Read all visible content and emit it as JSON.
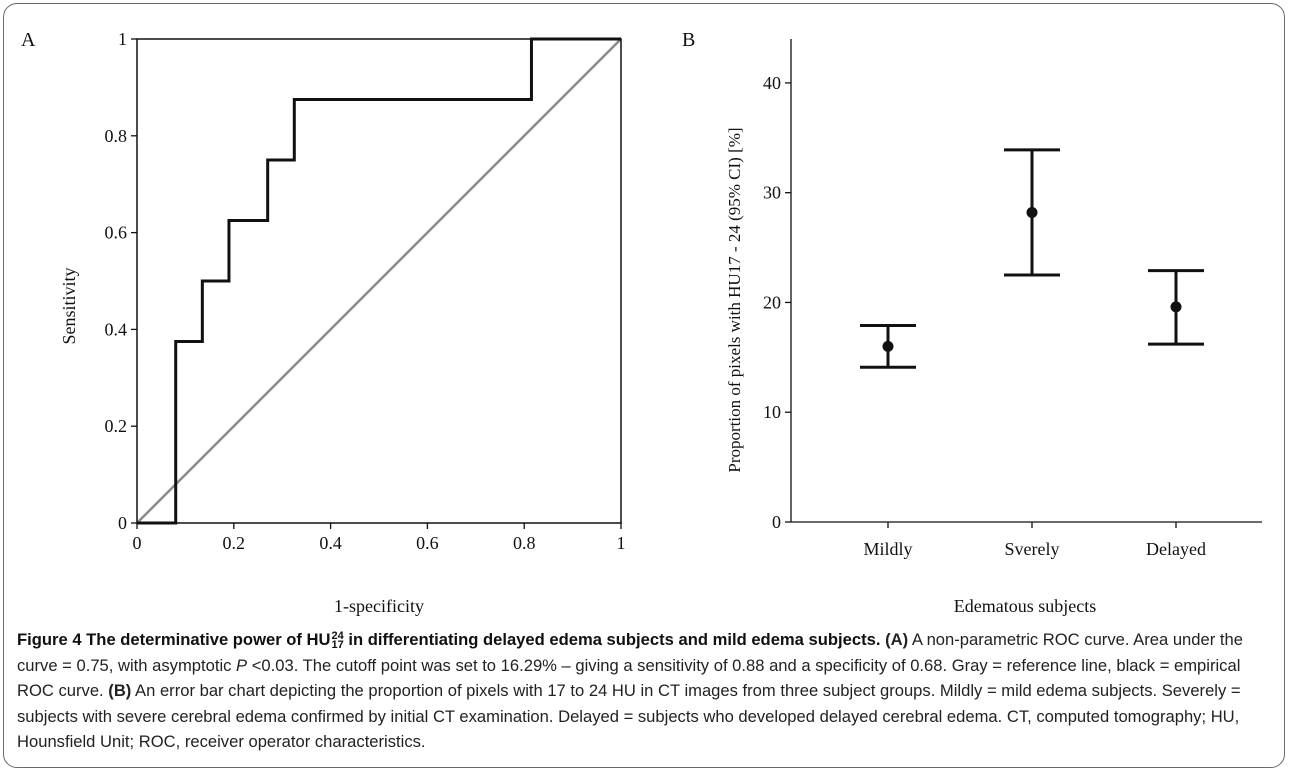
{
  "chart_data": [
    {
      "panel": "A",
      "type": "line",
      "xlabel": "1-specificity",
      "ylabel": "Sensitivity",
      "xlim": [
        0,
        1
      ],
      "ylim": [
        0,
        1
      ],
      "x_ticks": [
        "0",
        "0.2",
        "0.4",
        "0.6",
        "0.8",
        "1"
      ],
      "y_ticks": [
        "0",
        "0.2",
        "0.4",
        "0.6",
        "0.8",
        "1"
      ],
      "grid": false,
      "series": [
        {
          "color": "#111111",
          "x": [
            0,
            0.08,
            0.08,
            0.135,
            0.135,
            0.19,
            0.19,
            0.27,
            0.27,
            0.325,
            0.325,
            0.815,
            0.815,
            1.0
          ],
          "y": [
            0,
            0,
            0.375,
            0.375,
            0.5,
            0.5,
            0.625,
            0.625,
            0.75,
            0.75,
            0.875,
            0.875,
            1.0,
            1.0
          ]
        },
        {
          "color": "#8a8a8a",
          "x": [
            0,
            1
          ],
          "y": [
            0,
            1
          ]
        }
      ]
    },
    {
      "panel": "B",
      "type": "scatter",
      "xlabel": "Edematous subjects",
      "ylabel": "Proportion of pixels with HU17 - 24 (95% CI) [%]",
      "categories": [
        "Mildly",
        "Sverely",
        "Delayed"
      ],
      "ylim": [
        0,
        44
      ],
      "y_ticks": [
        0,
        10,
        20,
        30,
        40
      ],
      "grid": false,
      "series": [
        {
          "values": [
            16.0,
            28.2,
            19.6
          ],
          "ci_low": [
            14.1,
            22.5,
            16.2
          ],
          "ci_high": [
            17.9,
            33.9,
            22.9
          ]
        }
      ]
    }
  ],
  "caption": {
    "fig_label": "Figure 4",
    "title_pre": "The determinative power of HU",
    "hu_sup": "24",
    "hu_sub": "17",
    "title_post": " in differentiating delayed edema subjects and mild edema subjects.",
    "part_a_tag": "(A)",
    "part_a_text1": " A non-parametric ROC curve. Area under the curve = 0.75, with asymptotic ",
    "p_symbol": "P",
    "part_a_text2": " <0.03. The cutoff point was set to 16.29% – giving a sensitivity of 0.88 and a specificity of 0.68. Gray = reference line, black = empirical ROC curve. ",
    "part_b_tag": "(B)",
    "part_b_text": " An error bar chart depicting the proportion of pixels with 17 to 24 HU in CT images from three subject groups. Mildly = mild edema subjects. Severely = subjects with severe cerebral edema confirmed by initial CT examination. Delayed = subjects who developed delayed cerebral edema. CT, computed tomography; HU, Hounsfield Unit; ROC, receiver operator characteristics."
  }
}
